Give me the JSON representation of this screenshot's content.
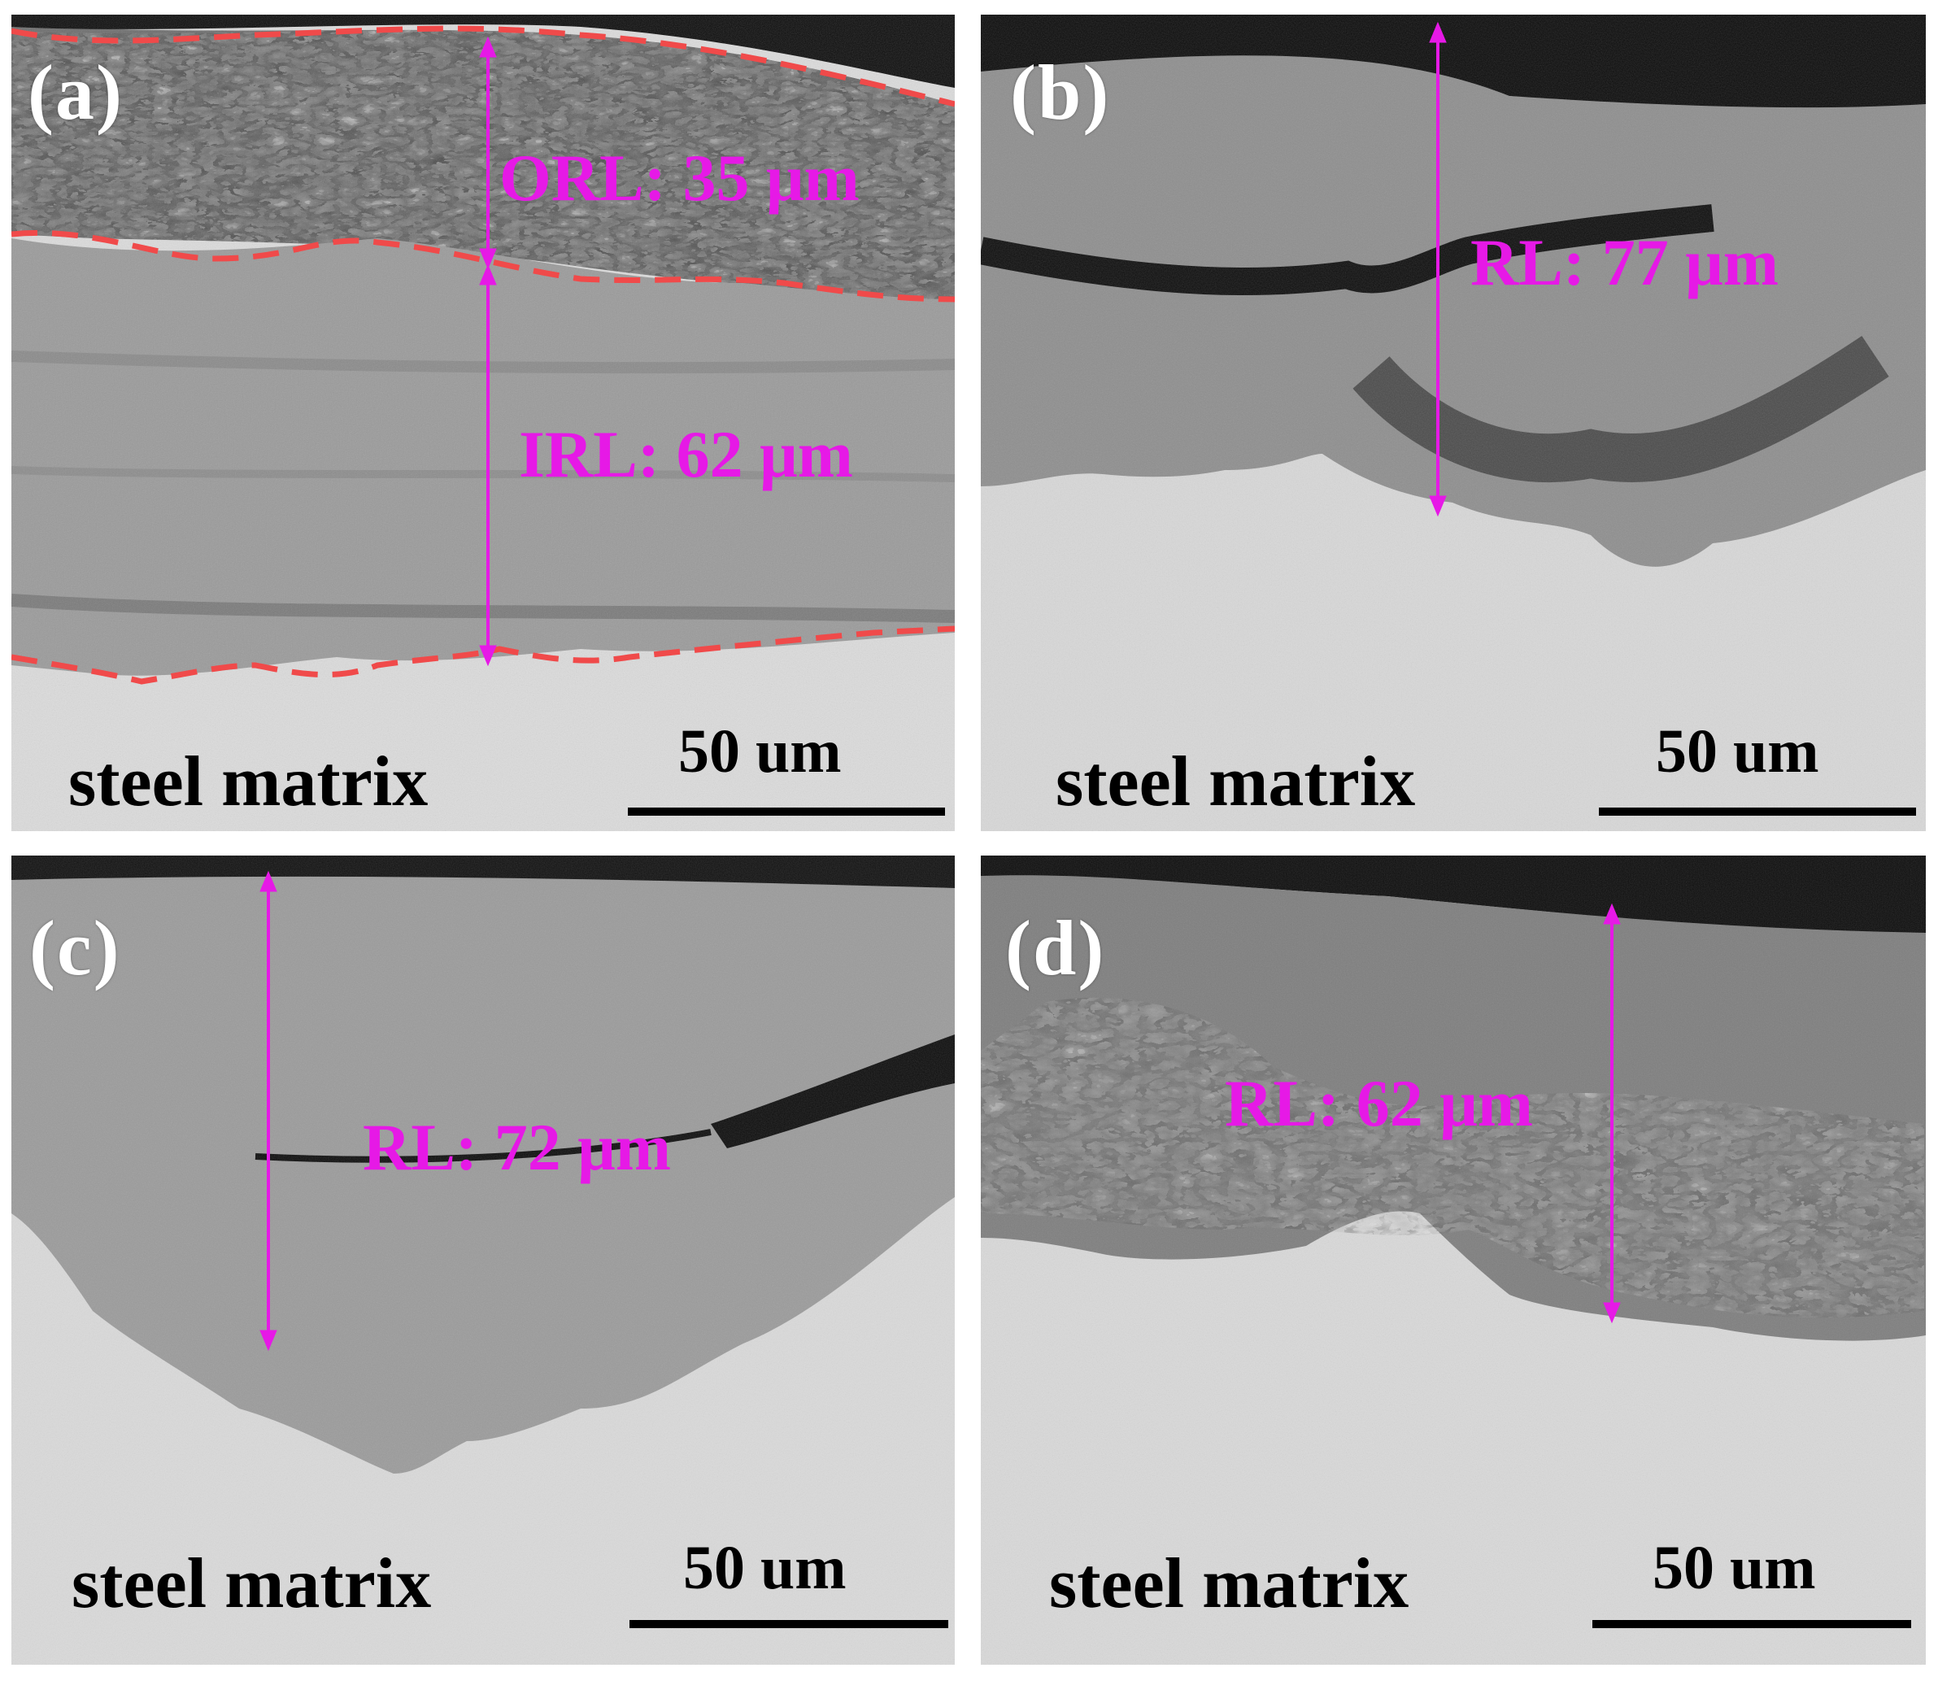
{
  "panels": [
    {
      "id": "a",
      "label": "(a)",
      "substrate_label": "steel matrix",
      "scale_label": "50 um",
      "measurements": [
        {
          "label": "ORL: 35 μm"
        },
        {
          "label": "IRL: 62 μm"
        }
      ]
    },
    {
      "id": "b",
      "label": "(b)",
      "substrate_label": "steel matrix",
      "scale_label": "50 um",
      "measurements": [
        {
          "label": "RL: 77 μm"
        }
      ]
    },
    {
      "id": "c",
      "label": "(c)",
      "substrate_label": "steel matrix",
      "scale_label": "50 um",
      "measurements": [
        {
          "label": "RL: 72 μm"
        }
      ]
    },
    {
      "id": "d",
      "label": "(d)",
      "substrate_label": "steel matrix",
      "scale_label": "50 um",
      "measurements": [
        {
          "label": "RL: 62 μm"
        }
      ]
    }
  ],
  "colors": {
    "annotation": "#e619e6",
    "boundary": "#f04a4a",
    "steel": "#d9d9d9",
    "rust": "#8f8f8f",
    "void": "#0a0a0a"
  }
}
